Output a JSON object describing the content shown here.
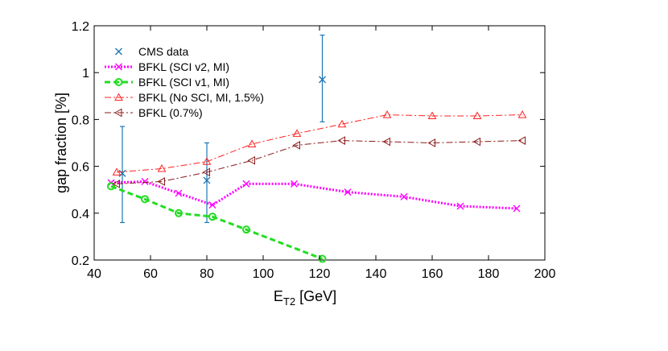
{
  "chart_data": {
    "type": "line",
    "xlabel": "E",
    "xlabel_sub": "T2",
    "xlabel_unit": "[GeV]",
    "ylabel": "gap fraction [%]",
    "xlim": [
      40,
      200
    ],
    "ylim": [
      0.2,
      1.2
    ],
    "xticks": [
      "40",
      "60",
      "80",
      "100",
      "120",
      "140",
      "160",
      "180",
      "200"
    ],
    "yticks": [
      "0.2",
      "0.4",
      "0.6",
      "0.8",
      "1",
      "1.2"
    ],
    "grid": false,
    "legend_position": "top-left",
    "series": [
      {
        "name": "CMS data",
        "kind": "errorbar",
        "color": "#1f77b4",
        "marker": "x",
        "x": [
          50,
          80,
          121
        ],
        "y": [
          0.57,
          0.54,
          0.97
        ],
        "yerr_low": [
          0.36,
          0.36,
          0.79
        ],
        "yerr_high": [
          0.77,
          0.7,
          1.16
        ]
      },
      {
        "name": "BFKL (SCI v2, MI)",
        "kind": "line",
        "color": "#ff00ff",
        "dash": "dotted",
        "marker": "x",
        "x": [
          46,
          58,
          70,
          82,
          94,
          111,
          130,
          150,
          170,
          190
        ],
        "y": [
          0.53,
          0.535,
          0.485,
          0.435,
          0.525,
          0.525,
          0.49,
          0.47,
          0.43,
          0.42
        ]
      },
      {
        "name": "BFKL (SCI v1, MI)",
        "kind": "line",
        "color": "#22dd22",
        "dash": "dashed",
        "marker": "o",
        "x": [
          46,
          58,
          70,
          82,
          94,
          121
        ],
        "y": [
          0.515,
          0.46,
          0.4,
          0.385,
          0.33,
          0.205
        ]
      },
      {
        "name": "BFKL (No SCI, MI, 1.5%)",
        "kind": "line",
        "color": "#ff2222",
        "dash": "dashdot",
        "marker": "triangle-up",
        "x": [
          48,
          64,
          80,
          96,
          112,
          128,
          144,
          160,
          176,
          192
        ],
        "y": [
          0.575,
          0.59,
          0.62,
          0.695,
          0.74,
          0.78,
          0.82,
          0.815,
          0.815,
          0.82
        ]
      },
      {
        "name": "BFKL (0.7%)",
        "kind": "line",
        "color": "#8b1a1a",
        "dash": "dashdot",
        "marker": "triangle-left",
        "x": [
          48,
          64,
          80,
          96,
          112,
          128,
          144,
          160,
          176,
          192
        ],
        "y": [
          0.525,
          0.535,
          0.575,
          0.625,
          0.69,
          0.71,
          0.705,
          0.7,
          0.705,
          0.71
        ]
      }
    ]
  }
}
